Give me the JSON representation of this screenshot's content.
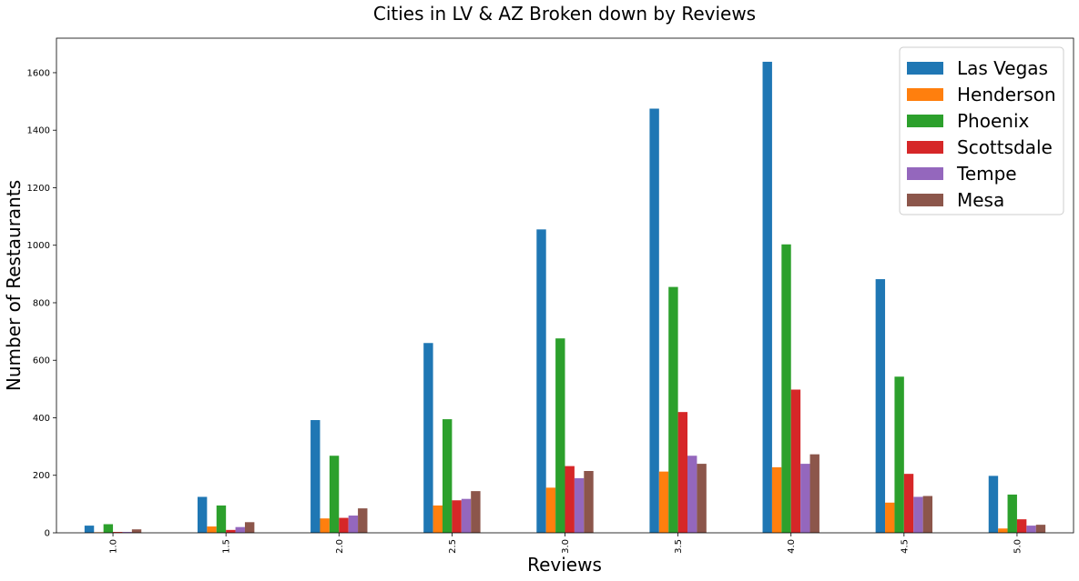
{
  "chart_data": {
    "type": "bar",
    "title": "Cities in LV & AZ Broken down by Reviews",
    "xlabel": "Reviews",
    "ylabel": "Number of Restaurants",
    "categories": [
      "1.0",
      "1.5",
      "2.0",
      "2.5",
      "3.0",
      "3.5",
      "4.0",
      "4.5",
      "5.0"
    ],
    "ylim": [
      0,
      1720
    ],
    "yticks": [
      0,
      200,
      400,
      600,
      800,
      1000,
      1200,
      1400,
      1600
    ],
    "grid": false,
    "legend_position": "top-right",
    "series": [
      {
        "name": "Las Vegas",
        "color": "#1f77b4",
        "values": [
          25,
          125,
          392,
          660,
          1055,
          1475,
          1638,
          882,
          198
        ]
      },
      {
        "name": "Henderson",
        "color": "#ff7f0e",
        "values": [
          2,
          22,
          50,
          95,
          157,
          213,
          228,
          105,
          15
        ]
      },
      {
        "name": "Phoenix",
        "color": "#2ca02c",
        "values": [
          30,
          95,
          268,
          395,
          676,
          855,
          1003,
          543,
          133
        ]
      },
      {
        "name": "Scottsdale",
        "color": "#d62728",
        "values": [
          3,
          10,
          52,
          113,
          232,
          420,
          498,
          205,
          47
        ]
      },
      {
        "name": "Tempe",
        "color": "#9467bd",
        "values": [
          3,
          20,
          60,
          118,
          190,
          268,
          240,
          125,
          25
        ]
      },
      {
        "name": "Mesa",
        "color": "#8c564b",
        "values": [
          12,
          37,
          85,
          145,
          215,
          240,
          273,
          128,
          28
        ]
      }
    ]
  }
}
